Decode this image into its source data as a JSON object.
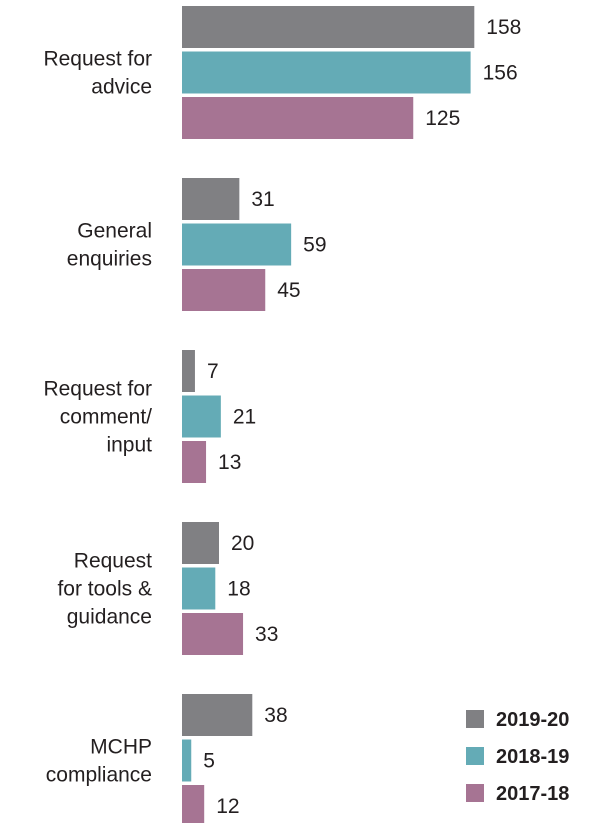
{
  "chart_data": {
    "type": "bar",
    "orientation": "horizontal",
    "categories": [
      [
        "Request for",
        "advice"
      ],
      [
        "General",
        "enquiries"
      ],
      [
        "Request for",
        "comment/",
        "input"
      ],
      [
        "Request",
        "for tools &",
        "guidance"
      ],
      [
        "MCHP",
        "compliance"
      ]
    ],
    "series": [
      {
        "name": "2019-20",
        "color": "#808083",
        "values": [
          158,
          31,
          7,
          20,
          38
        ]
      },
      {
        "name": "2018-19",
        "color": "#64abb6",
        "values": [
          156,
          59,
          21,
          18,
          5
        ]
      },
      {
        "name": "2017-18",
        "color": "#a67493",
        "values": [
          125,
          45,
          13,
          33,
          12
        ]
      }
    ],
    "xlim": [
      0,
      160
    ],
    "grid": false,
    "legend_position": "bottom-right",
    "title": "",
    "xlabel": "",
    "ylabel": ""
  }
}
